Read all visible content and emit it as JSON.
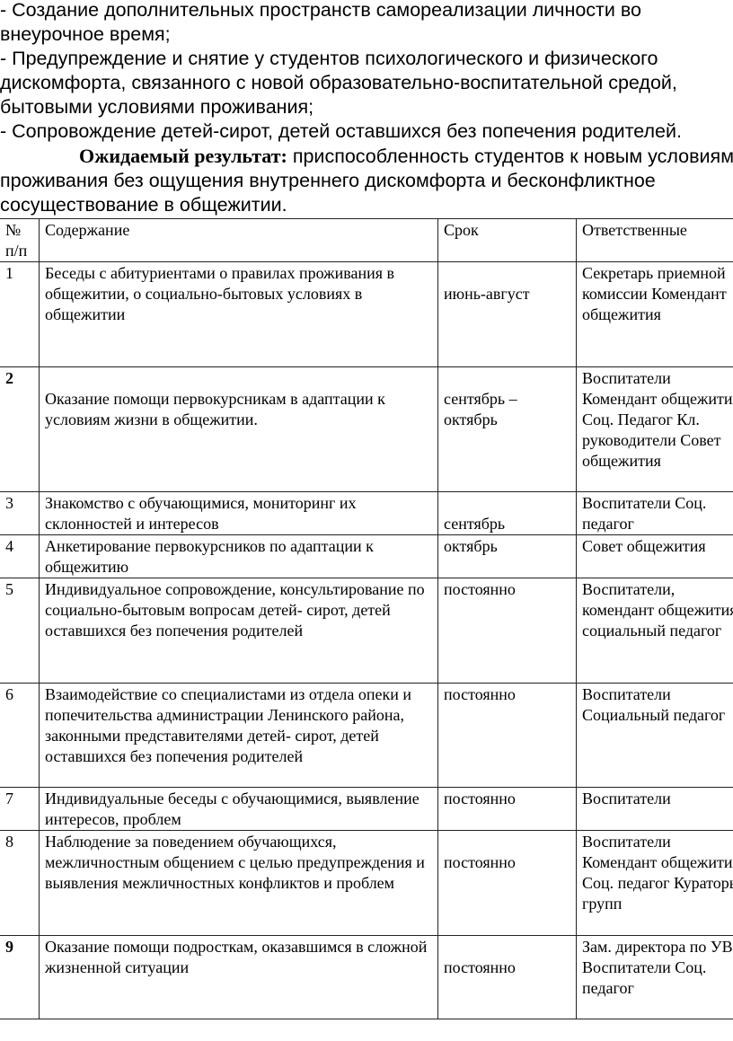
{
  "intro": {
    "lines": [
      "- Создание дополнительных пространств самореализации личности во внеурочное время;",
      "- Предупреждение и снятие у студентов психологического и физического дискомфорта, связанного с новой образовательно-воспитательной средой, бытовыми условиями проживания;",
      "- Сопровождение детей-сирот, детей оставшихся без попечения родителей."
    ],
    "result_label": "Ожидаемый результат:",
    "result_text": " приспособленность студентов к новым условиям проживания без ощущения внутреннего дискомфорта и бесконфликтное сосуществование в общежитии."
  },
  "table": {
    "headers": [
      "№ п/п",
      "Содержание",
      "Срок",
      "Ответственные"
    ],
    "rows": [
      {
        "num": "1",
        "content": "Беседы с абитуриентами о правилах проживания в общежитии, о социально-бытовых условиях в общежитии",
        "term": "июнь-август",
        "resp": "Секретарь приемной комиссии Комендант общежития"
      },
      {
        "num": "2",
        "content": "Оказание помощи первокурсникам в адаптации к условиям жизни в общежитии.",
        "term": "сентябрь – октябрь",
        "resp": "Воспитатели Комендант общежития Соц. Педагог Кл. руководители Совет общежития"
      },
      {
        "num": "3",
        "content": "Знакомство с обучающимися, мониторинг их склонностей и интересов",
        "term": "сентябрь",
        "resp": "Воспитатели Соц. педагог"
      },
      {
        "num": "4",
        "content": "Анкетирование первокурсников по адаптации к общежитию",
        "term": "октябрь",
        "resp": "Совет общежития"
      },
      {
        "num": "5",
        "content": "Индивидуальное сопровождение, консультирование по социально-бытовым вопросам детей- сирот, детей оставшихся без попечения родителей",
        "term": "постоянно",
        "resp": "Воспитатели, комендант общежития социальный педагог"
      },
      {
        "num": "6",
        "content": "Взаимодействие со специалистами из отдела опеки и попечительства администрации Ленинского района, законными представителями детей- сирот, детей оставшихся без попечения родителей",
        "term": "постоянно",
        "resp": "Воспитатели Социальный педагог"
      },
      {
        "num": "7",
        "content": "Индивидуальные беседы с обучающимися, выявление интересов, проблем",
        "term": "постоянно",
        "resp": "Воспитатели"
      },
      {
        "num": "8",
        "content": "Наблюдение за поведением обучающихся, межличностным общением с целью предупреждения и выявления межличностных конфликтов и проблем",
        "term": "постоянно",
        "resp": "Воспитатели Комендант общежития Соц. педагог Кураторы групп"
      },
      {
        "num": "9",
        "content": " Оказание помощи подросткам, оказавшимся в сложной жизненной ситуации",
        "term": "постоянно",
        "resp": "Зам. директора по УВР Воспитатели Соц. педагог"
      }
    ]
  }
}
